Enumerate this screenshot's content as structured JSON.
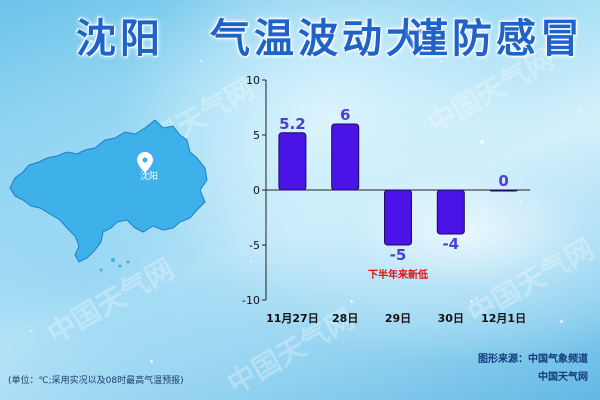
{
  "title": {
    "city": "沈阳",
    "headline": "气温波动大",
    "advice": "谨防感冒"
  },
  "map": {
    "city_label": "沈阳",
    "fill_color": "#3eb0ea"
  },
  "watermark": "中国天气网",
  "chart_data": {
    "type": "bar",
    "categories": [
      "11月27日",
      "28日",
      "29日",
      "30日",
      "12月1日"
    ],
    "values": [
      5.2,
      6,
      -5,
      -4,
      0
    ],
    "value_labels": [
      "5.2",
      "6",
      "-5",
      "-4",
      "0"
    ],
    "ylim": [
      -10,
      10
    ],
    "yticks": [
      10,
      5,
      0,
      -5,
      -10
    ],
    "bar_color": "#4a14e6",
    "label_color": "#4b3fd6",
    "annotation": {
      "text": "下半年来新低",
      "category": "29日",
      "color": "#e01010"
    }
  },
  "footer": {
    "source": "图形来源：中国气象频道",
    "brand": "中国天气网",
    "unit_note": "(单位：℃;采用实况以及08时最高气温预报)"
  }
}
